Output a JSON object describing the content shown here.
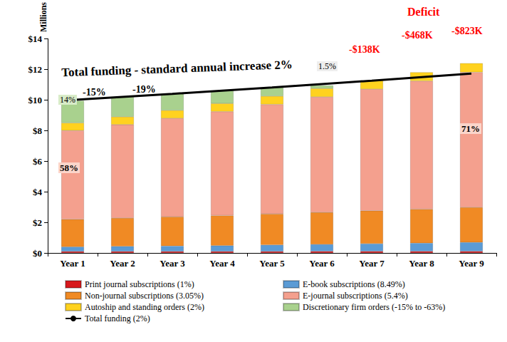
{
  "chart_data": {
    "type": "bar",
    "stacked": true,
    "grid": false,
    "legend": "bottom",
    "y_label": "Millions",
    "categories": [
      "Year 1",
      "Year 2",
      "Year 3",
      "Year 4",
      "Year 5",
      "Year 6",
      "Year 7",
      "Year 8",
      "Year 9"
    ],
    "ylim": [
      0,
      14
    ],
    "yticks": [
      {
        "value": 0,
        "label": "$0"
      },
      {
        "value": 2,
        "label": "$2"
      },
      {
        "value": 4,
        "label": "$4"
      },
      {
        "value": 6,
        "label": "$6"
      },
      {
        "value": 8,
        "label": "$8"
      },
      {
        "value": 10,
        "label": "$10"
      },
      {
        "value": 12,
        "label": "$12"
      },
      {
        "value": 14,
        "label": "$14"
      }
    ],
    "series": [
      {
        "name": "Print journal subscriptions (1%)",
        "type": "bar",
        "color": "#d7191c",
        "values": [
          0.1,
          0.1,
          0.1,
          0.1,
          0.1,
          0.11,
          0.11,
          0.11,
          0.11
        ]
      },
      {
        "name": "E-book subscriptions (8.49%)",
        "type": "bar",
        "color": "#5b9bd5",
        "values": [
          0.3,
          0.33,
          0.35,
          0.38,
          0.42,
          0.45,
          0.49,
          0.53,
          0.58
        ]
      },
      {
        "name": "Non-journal subscriptions (3.05%)",
        "type": "bar",
        "color": "#f08a24",
        "values": [
          1.8,
          1.85,
          1.91,
          1.97,
          2.03,
          2.09,
          2.16,
          2.22,
          2.29
        ]
      },
      {
        "name": "E-journal subscriptions (5.4%)",
        "type": "bar",
        "color": "#f4a08e",
        "values": [
          5.8,
          6.11,
          6.44,
          6.79,
          7.16,
          7.55,
          7.95,
          8.38,
          8.83
        ]
      },
      {
        "name": "Autoship and standing orders (2%)",
        "type": "bar",
        "color": "#ffd21f",
        "values": [
          0.5,
          0.51,
          0.52,
          0.53,
          0.54,
          0.55,
          0.56,
          0.57,
          0.59
        ]
      },
      {
        "name": "Discretionary firm orders (-15% to -63%)",
        "type": "bar",
        "color": "#a9d18e",
        "values": [
          1.45,
          1.3,
          1.08,
          0.84,
          0.57,
          0.2,
          null,
          null,
          null
        ]
      },
      {
        "name": "Total funding (2%)",
        "type": "line",
        "color": "#000000",
        "values": [
          10.0,
          10.2,
          10.4,
          10.61,
          10.82,
          11.04,
          11.26,
          11.49,
          11.72
        ]
      }
    ],
    "annotations": [
      "Total funding - standard annual increase 2%",
      "-15%",
      "-19%",
      "14%",
      "58%",
      "71%",
      "1.5%",
      "Deficit",
      "-$138K",
      "-$468K",
      "-$823K"
    ]
  }
}
